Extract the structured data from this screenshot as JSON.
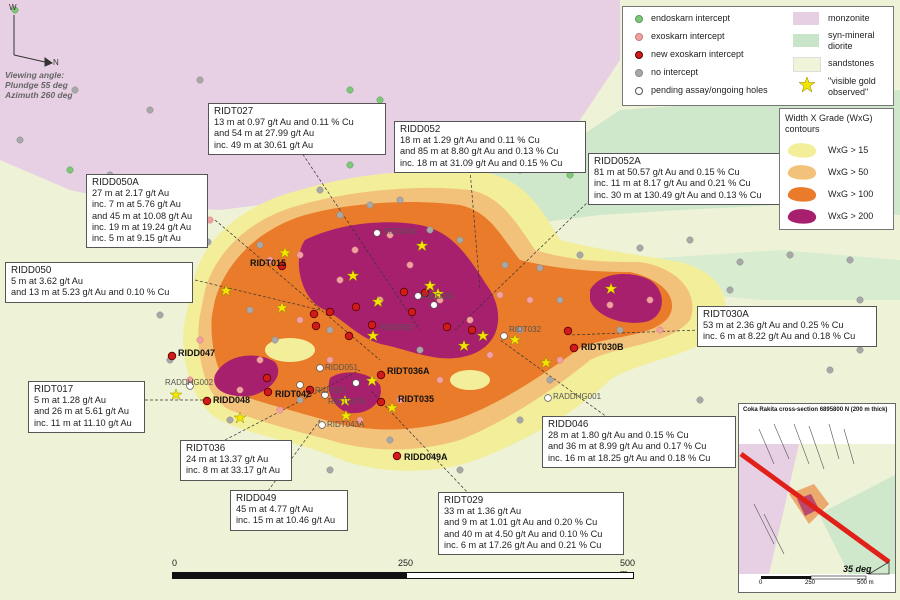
{
  "viewing": {
    "line1": "Viewing angle:",
    "line2": "Plundge 55 deg",
    "line3": "Azimuth 260 deg"
  },
  "compass": {
    "north": "N",
    "west": "W"
  },
  "legend": {
    "items": [
      {
        "label": "endoskarn intercept",
        "color": "#7ec87a"
      },
      {
        "label": "exoskarn intercept",
        "color": "#f2a0a0"
      },
      {
        "label": "new exoskarn intercept",
        "color": "#d11a1a"
      },
      {
        "label": "no intercept",
        "color": "#a8a8a8"
      },
      {
        "label": "pending assay/ongoing holes",
        "color": "#ffffff"
      }
    ],
    "units": [
      {
        "label": "monzonite",
        "color": "#e6cfe3"
      },
      {
        "label": "syn-mineral",
        "label2": "diorite",
        "color": "#c9e5c9"
      },
      {
        "label": "sandstones",
        "color": "#f0f4d8"
      }
    ],
    "gold": {
      "label": "\"visible gold",
      "label2": "observed\"",
      "color": "#f2e600"
    }
  },
  "wxg": {
    "title": "Width X Grade (WxG)",
    "title2": "contours",
    "items": [
      {
        "label": "WxG > 15",
        "color": "#f3ee9a"
      },
      {
        "label": "WxG > 50",
        "color": "#f2c27a"
      },
      {
        "label": "WxG > 100",
        "color": "#e97b2a"
      },
      {
        "label": "WxG > 200",
        "color": "#a7206d"
      }
    ]
  },
  "callouts": [
    {
      "id": "RIDT027",
      "lines": [
        "13 m at 0.97 g/t Au and 0.11 % Cu",
        "and 54 m at 27.99 g/t Au",
        "inc. 49 m at 30.61 g/t Au"
      ]
    },
    {
      "id": "RIDD052",
      "lines": [
        "18 m at 1.29 g/t Au and 0.11 % Cu",
        "and 85 m at 8.80 g/t Au and 0.13 % Cu",
        "inc. 18 m at 31.09 g/t Au and 0.15 % Cu"
      ]
    },
    {
      "id": "RIDD052A",
      "lines": [
        "81 m at 50.57 g/t Au and 0.15 % Cu",
        "inc. 11 m at 8.17 g/t Au and 0.21 % Cu",
        "inc. 30 m at 130.49 g/t Au and 0.13 % Cu"
      ]
    },
    {
      "id": "RIDD050A",
      "lines": [
        "27 m at 2.17 g/t Au",
        "inc. 7 m at 5.76 g/t Au",
        "and 45 m at 10.08 g/t Au",
        "inc. 19 m at 19.24 g/t Au",
        "inc. 5 m at 9.15 g/t Au"
      ]
    },
    {
      "id": "RIDD050",
      "lines": [
        "5 m at 3.62 g/t Au",
        "and 13 m at 5.23 g/t Au and 0.10 % Cu"
      ]
    },
    {
      "id": "RIDT030A",
      "lines": [
        "53 m at 2.36 g/t Au and 0.25 % Cu",
        "inc. 6 m at 8.22 g/t Au and 0.18 % Cu"
      ]
    },
    {
      "id": "RIDT017",
      "lines": [
        "5 m at 1.28 g/t Au",
        "and 26 m at 5.61 g/t Au",
        "inc. 11 m at 11.10 g/t Au"
      ]
    },
    {
      "id": "RIDD046",
      "lines": [
        "28 m at 1.80 g/t Au and 0.15 % Cu",
        "and 36 m at 8.99 g/t Au and 0.17 % Cu",
        "inc. 16 m at 18.25 g/t Au and 0.18 % Cu"
      ]
    },
    {
      "id": "RIDT036",
      "lines": [
        "24 m at 13.37 g/t Au",
        "inc. 8 m at 33.17 g/t Au"
      ]
    },
    {
      "id": "RIDD049",
      "lines": [
        "45 m at 4.77 g/t Au",
        "inc. 15 m at 10.46 g/t Au"
      ]
    },
    {
      "id": "RIDT029",
      "lines": [
        "33 m at 1.36 g/t Au",
        "and 9 m at 1.01 g/t Au and 0.20 % Cu",
        "and 40 m at 4.50 g/t Au and 0.10 % Cu",
        "inc. 6 m at 17.26 g/t Au and 0.21 % Cu"
      ]
    }
  ],
  "hole_labels": {
    "new": [
      "RIDT015",
      "RIDD047",
      "RIDD048",
      "RIDT042",
      "RIDT036A",
      "RIDT035",
      "RIDD049A",
      "RIDT030B"
    ],
    "grey": [
      "RIDD054",
      "RIDD055",
      "RIDD053",
      "RIDT032",
      "RADDHG002",
      "RIDD051",
      "RIDT037",
      "RIDT037A",
      "RIDT043A",
      "RADDHG001"
    ]
  },
  "scale": {
    "t0": "0",
    "t1": "250",
    "t2": "500 m"
  },
  "inset": {
    "title": "Coka Rakita cross-section 6895800 N (200 m thick)",
    "t0": "0",
    "t1": "250",
    "t2": "500 m",
    "angle": "35 deg"
  }
}
